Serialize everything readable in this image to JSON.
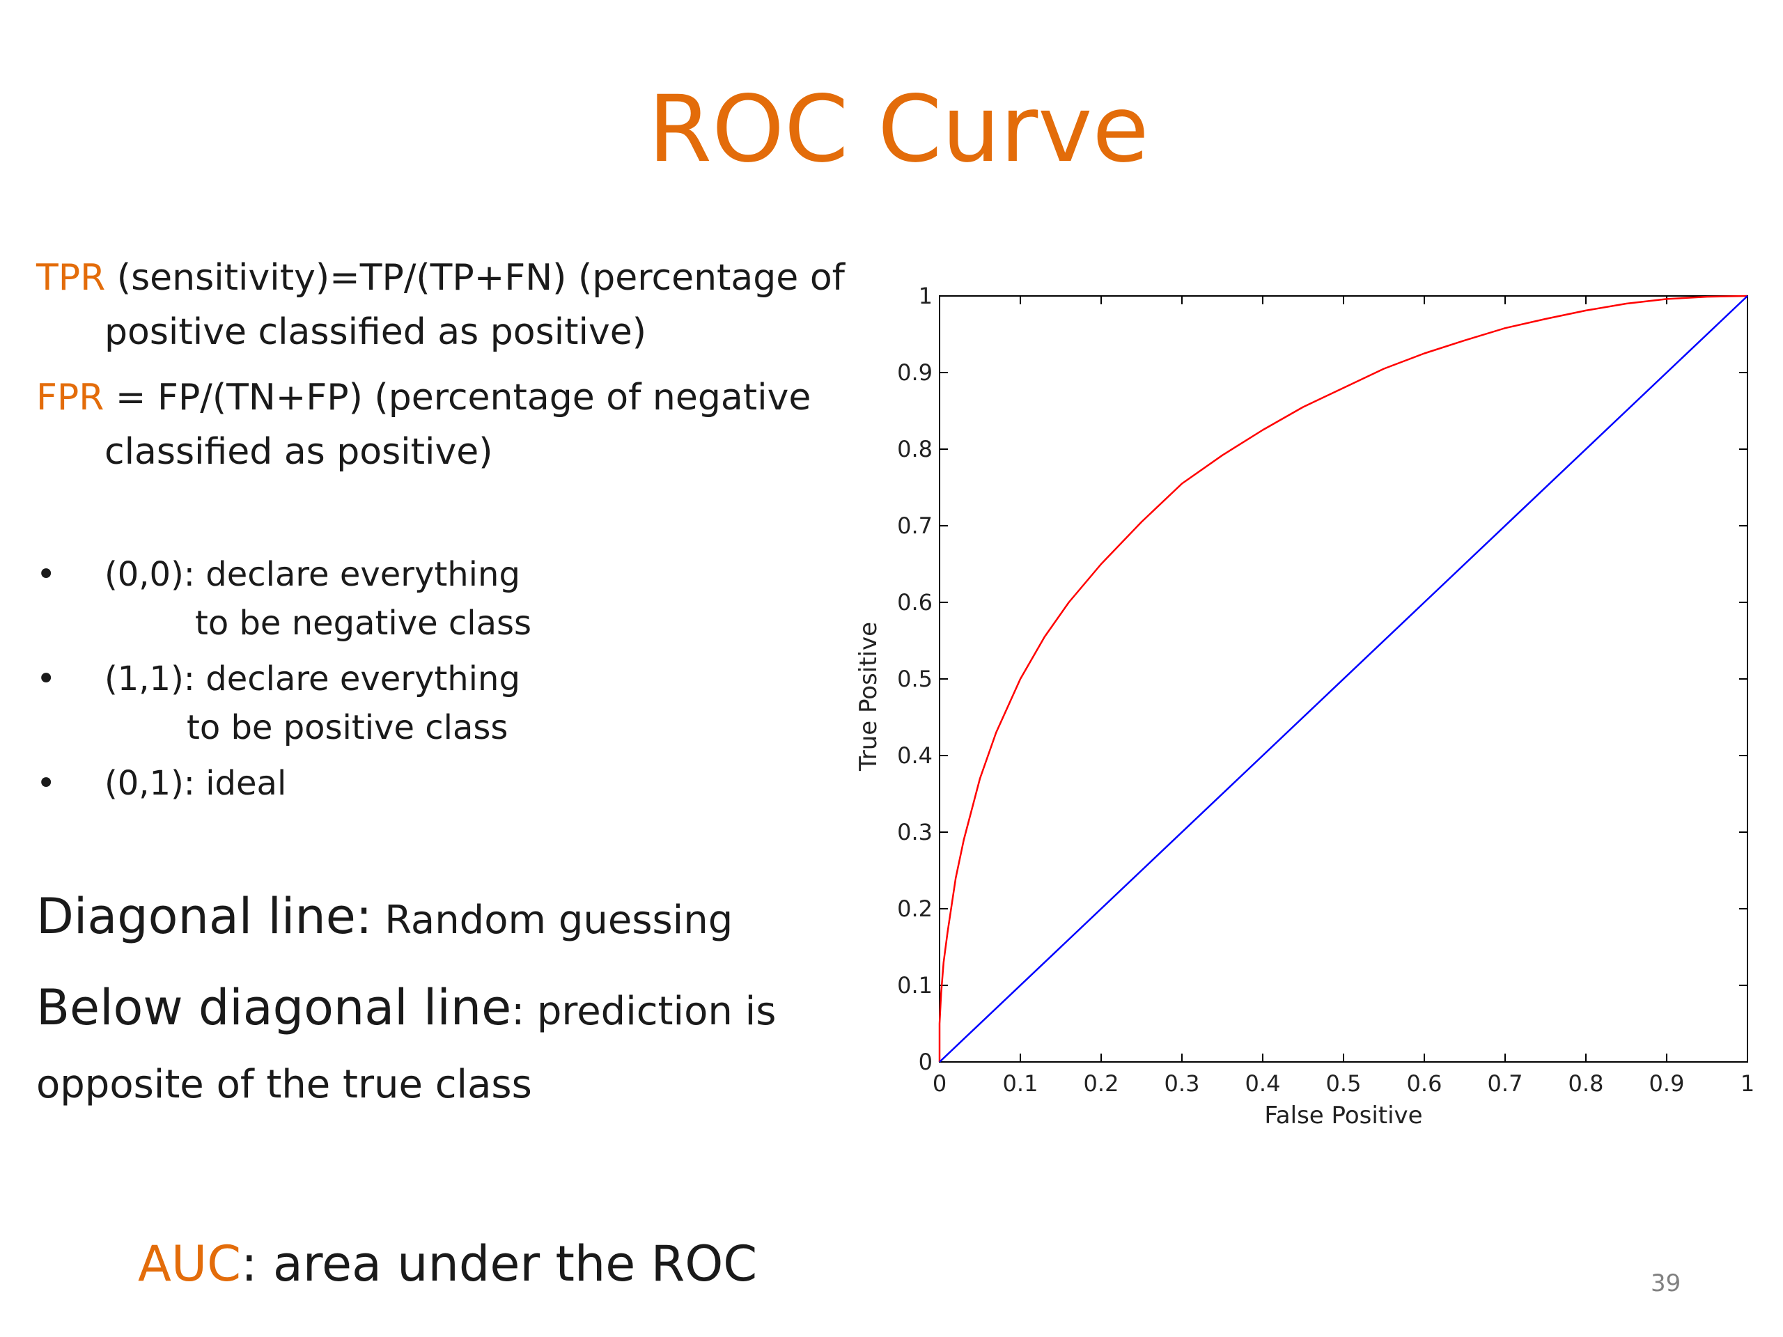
{
  "slide": {
    "title": "ROC Curve",
    "page_number": "39",
    "accent_color": "#e36c0a",
    "tpr": {
      "term": "TPR",
      "rest": " (sensitivity)=TP/(TP+FN) (percentage of",
      "line2": "positive classified as positive)"
    },
    "fpr": {
      "term": "FPR",
      "rest": " = FP/(TN+FP) (percentage of negative",
      "line2": "classified as positive)"
    },
    "bullets": [
      {
        "text": "(0,0): declare everything",
        "cont": "to be negative class"
      },
      {
        "text": "(1,1): declare everything",
        "cont": "to be positive class"
      },
      {
        "text": "(0,1): ideal",
        "cont": ""
      }
    ],
    "diagonal": {
      "lead": "Diagonal line:",
      "text": " Random guessing"
    },
    "below": {
      "lead": "Below diagonal line",
      "text": ": prediction is",
      "line2": "opposite of the true class"
    },
    "auc": {
      "term": "AUC",
      "text": ": area under the ROC"
    }
  },
  "chart_data": {
    "type": "line",
    "title": "",
    "xlabel": "False Positive",
    "ylabel": "True Positive",
    "xlim": [
      0,
      1
    ],
    "ylim": [
      0,
      1
    ],
    "xticks": [
      "0",
      "0.1",
      "0.2",
      "0.3",
      "0.4",
      "0.5",
      "0.6",
      "0.7",
      "0.8",
      "0.9",
      "1"
    ],
    "yticks": [
      "0",
      "0.1",
      "0.2",
      "0.3",
      "0.4",
      "0.5",
      "0.6",
      "0.7",
      "0.8",
      "0.9",
      "1"
    ],
    "grid": false,
    "legend": "none",
    "series": [
      {
        "color": "#ff0000",
        "x": [
          0,
          0,
          0.002,
          0.005,
          0.01,
          0.02,
          0.03,
          0.05,
          0.07,
          0.1,
          0.13,
          0.16,
          0.2,
          0.25,
          0.3,
          0.35,
          0.4,
          0.45,
          0.5,
          0.55,
          0.6,
          0.65,
          0.7,
          0.75,
          0.8,
          0.85,
          0.9,
          0.95,
          1
        ],
        "y": [
          0,
          0.05,
          0.09,
          0.13,
          0.17,
          0.24,
          0.29,
          0.37,
          0.43,
          0.5,
          0.555,
          0.6,
          0.65,
          0.705,
          0.755,
          0.792,
          0.825,
          0.855,
          0.88,
          0.905,
          0.925,
          0.942,
          0.958,
          0.97,
          0.981,
          0.99,
          0.996,
          0.999,
          1
        ]
      },
      {
        "color": "#0000ff",
        "x": [
          0,
          1
        ],
        "y": [
          0,
          1
        ]
      }
    ]
  }
}
